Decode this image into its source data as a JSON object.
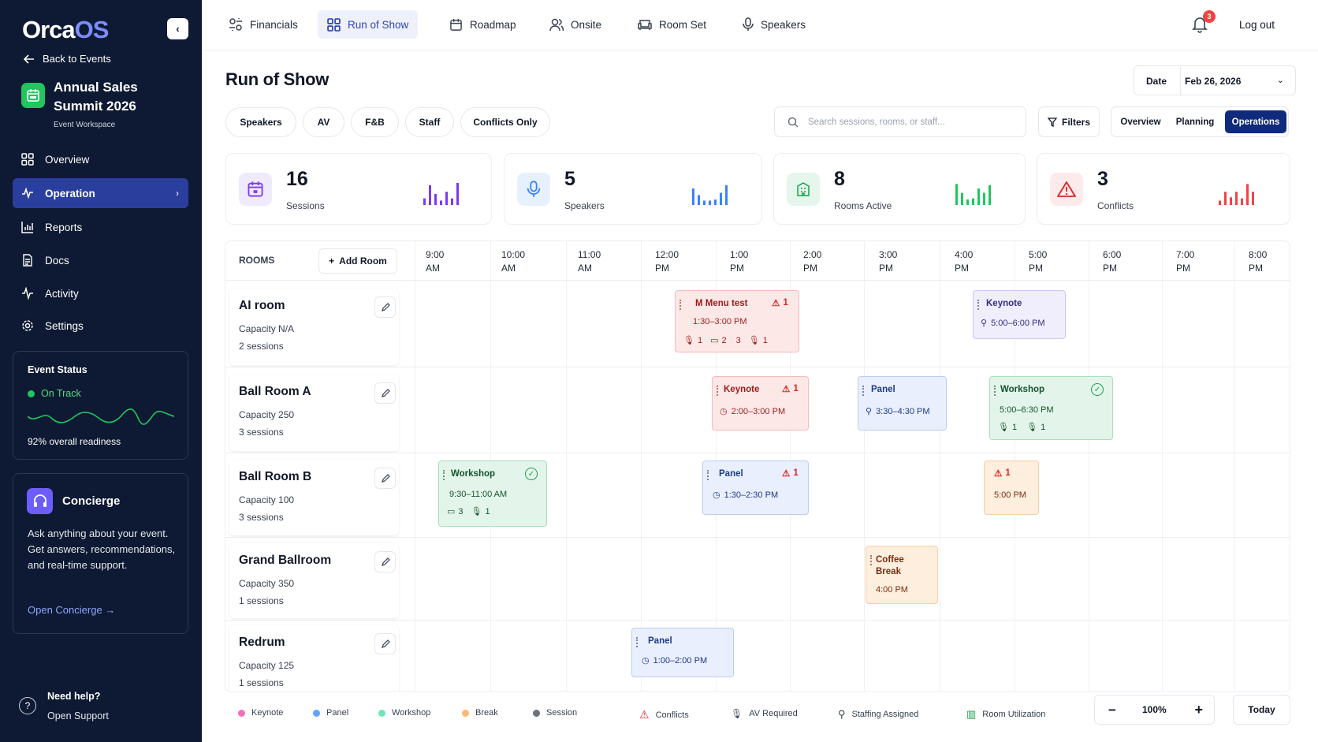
{
  "app": {
    "logo_main": "Orca",
    "logo_accent": "OS",
    "collapse": "‹"
  },
  "sidebar": {
    "back": "Back to Events",
    "event_title": "Annual Sales Summit 2026",
    "event_sub": "Event Workspace",
    "nav": [
      {
        "label": "Overview",
        "icon": "grid-icon"
      },
      {
        "label": "Operation",
        "icon": "activity-icon",
        "active": true
      },
      {
        "label": "Reports",
        "icon": "bar-chart-icon"
      },
      {
        "label": "Docs",
        "icon": "document-icon"
      },
      {
        "label": "Activity",
        "icon": "pulse-icon"
      },
      {
        "label": "Settings",
        "icon": "gear-icon"
      }
    ],
    "status": {
      "title": "Event Status",
      "value": "On Track",
      "readiness": "92% overall readiness"
    },
    "concierge": {
      "title": "Concierge",
      "desc": "Ask anything about your event. Get answers, recommendations, and real-time support.",
      "link": "Open Concierge →"
    },
    "help": {
      "title": "Need help?",
      "link": "Open Support",
      "icon": "?"
    }
  },
  "topnav": [
    {
      "label": "Financials",
      "icon": "sliders-icon"
    },
    {
      "label": "Run of Show",
      "icon": "grid-icon",
      "active": true
    },
    {
      "label": "Roadmap",
      "icon": "calendar-icon"
    },
    {
      "label": "Onsite",
      "icon": "users-icon"
    },
    {
      "label": "Room Set",
      "icon": "sofa-icon"
    },
    {
      "label": "Speakers",
      "icon": "microphone-icon"
    }
  ],
  "header": {
    "notifications": "3",
    "logout": "Log out"
  },
  "page": {
    "title": "Run of Show",
    "date_label": "Date",
    "date_value": "Feb 26, 2026",
    "date_chevron": "⌄"
  },
  "chips": [
    "Speakers",
    "AV",
    "F&B",
    "Staff",
    "Conflicts Only"
  ],
  "search": {
    "placeholder": "Search sessions, rooms, or staff..."
  },
  "filters_label": "Filters",
  "views": [
    {
      "label": "Overview"
    },
    {
      "label": "Planning"
    },
    {
      "label": "Operations",
      "active": true
    }
  ],
  "stats": [
    {
      "value": "16",
      "label": "Sessions",
      "color": "#7c3aed",
      "bars": [
        0.3,
        0.9,
        0.5,
        0.2,
        0.6,
        0.3,
        1.0
      ]
    },
    {
      "value": "5",
      "label": "Speakers",
      "color": "#3b82f6",
      "bars": [
        0.75,
        0.45,
        0.2,
        0.2,
        0.25,
        0.55,
        0.9
      ]
    },
    {
      "value": "8",
      "label": "Rooms Active",
      "color": "#22c55e",
      "bars": [
        0.95,
        0.55,
        0.25,
        0.3,
        0.75,
        0.55,
        0.9
      ]
    },
    {
      "value": "3",
      "label": "Conflicts",
      "color": "#ef4444",
      "bars": [
        0.2,
        0.6,
        0.35,
        0.6,
        0.3,
        0.95,
        0.6
      ]
    }
  ],
  "schedule": {
    "rooms_label": "ROOMS",
    "add_room": "Add Room",
    "times": [
      [
        "9:00",
        "AM"
      ],
      [
        "10:00",
        "AM"
      ],
      [
        "11:00",
        "AM"
      ],
      [
        "12:00",
        "PM"
      ],
      [
        "1:00",
        "PM"
      ],
      [
        "2:00",
        "PM"
      ],
      [
        "3:00",
        "PM"
      ],
      [
        "4:00",
        "PM"
      ],
      [
        "5:00",
        "PM"
      ],
      [
        "6:00",
        "PM"
      ],
      [
        "7:00",
        "PM"
      ],
      [
        "8:00",
        "PM"
      ]
    ],
    "rooms": [
      {
        "name": "AI room",
        "capacity": "Capacity N/A",
        "sessions": "2 sessions"
      },
      {
        "name": "Ball Room A",
        "capacity": "Capacity 250",
        "sessions": "3 sessions"
      },
      {
        "name": "Ball Room B",
        "capacity": "Capacity 100",
        "sessions": "3 sessions"
      },
      {
        "name": "Grand Ballroom",
        "capacity": "Capacity 350",
        "sessions": "1 sessions"
      },
      {
        "name": "Redrum",
        "capacity": "Capacity 125",
        "sessions": "1 sessions"
      }
    ],
    "events": [
      {
        "title": "M Menu test",
        "time": "1:30–3:00 PM",
        "color": "red",
        "conflict": "1",
        "meta": [
          "1",
          "2",
          "3",
          "1"
        ]
      },
      {
        "title": "Keynote",
        "time": "5:00–6:00 PM",
        "color": "purple"
      },
      {
        "title": "Keynote",
        "time": "2:00–3:00 PM",
        "color": "red",
        "conflict": "1"
      },
      {
        "title": "Panel",
        "time": "3:30–4:30 PM",
        "color": "blue"
      },
      {
        "title": "Workshop",
        "time": "5:00–6:30 PM",
        "color": "green",
        "check": true,
        "meta": [
          "1",
          "1"
        ]
      },
      {
        "title": "Workshop",
        "time": "9:30–11:00 AM",
        "color": "green",
        "check": true,
        "meta": [
          "3",
          "1"
        ]
      },
      {
        "title": "Panel",
        "time": "1:30–2:30 PM",
        "color": "blue",
        "conflict": "1"
      },
      {
        "title": "",
        "time": "5:00 PM",
        "color": "orange",
        "conflict": "1"
      },
      {
        "title": "Coffee Break",
        "time": "4:00 PM",
        "color": "orange"
      },
      {
        "title": "Panel",
        "time": "1:00–2:00 PM",
        "color": "blue"
      }
    ]
  },
  "legend": [
    {
      "label": "Keynote",
      "color": "#f472b6"
    },
    {
      "label": "Panel",
      "color": "#60a5fa"
    },
    {
      "label": "Workshop",
      "color": "#6ee7b7"
    },
    {
      "label": "Break",
      "color": "#fdba74"
    },
    {
      "label": "Session",
      "color": "#6b7280"
    },
    {
      "label": "Conflicts",
      "icon": "warning-icon"
    },
    {
      "label": "AV Required",
      "icon": "microphone-icon"
    },
    {
      "label": "Staffing Assigned",
      "icon": "user-icon"
    },
    {
      "label": "Room Utilization",
      "icon": "bar-chart-icon"
    }
  ],
  "zoom": {
    "minus": "−",
    "value": "100%",
    "plus": "+"
  },
  "today": "Today"
}
